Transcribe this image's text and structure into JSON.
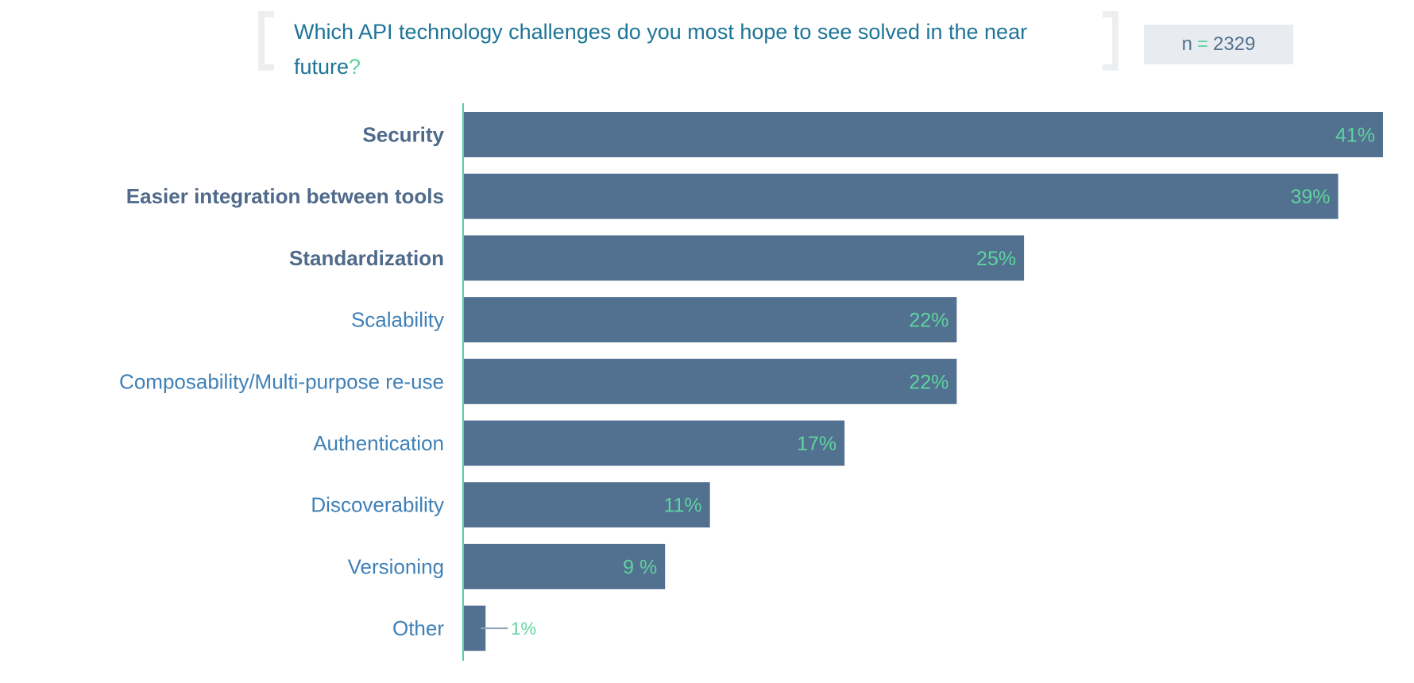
{
  "title": "Which API technology challenges do you most hope to see solved in the near future",
  "title_mark": "?",
  "sample": {
    "label": "n",
    "eq": "=",
    "value": "2329"
  },
  "colors": {
    "bar": "#52708f",
    "value": "#5fd3a0",
    "axis": "#4ed1a1",
    "label_dark": "#4f6a8a",
    "label_light": "#3f80b7"
  },
  "chart_data": {
    "type": "bar",
    "orientation": "horizontal",
    "categories": [
      "Security",
      "Easier integration between tools",
      "Standardization",
      "Scalability",
      "Composability/Multi-purpose re-use",
      "Authentication",
      "Discoverability",
      "Versioning",
      "Other"
    ],
    "values": [
      41,
      39,
      25,
      22,
      22,
      17,
      11,
      9,
      1
    ],
    "labels": [
      "41%",
      "39%",
      "25%",
      "22%",
      "22%",
      "17%",
      "11%",
      "9 %",
      "1%"
    ],
    "emphasized": [
      true,
      true,
      true,
      false,
      false,
      false,
      false,
      false,
      false
    ],
    "unit": "%",
    "xlim": [
      0,
      41
    ]
  }
}
